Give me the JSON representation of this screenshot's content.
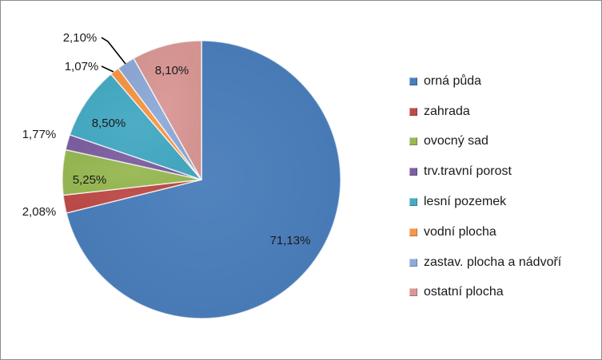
{
  "chart_data": {
    "type": "pie",
    "categories": [
      "orná půda",
      "zahrada",
      "ovocný sad",
      "trv.travní porost",
      "lesní pozemek",
      "vodní plocha",
      "zastav. plocha a nádvoří",
      "ostatní plocha"
    ],
    "values": [
      71.13,
      2.08,
      5.25,
      1.77,
      8.5,
      1.07,
      2.1,
      8.1
    ],
    "labels": [
      "71,13%",
      "2,08%",
      "5,25%",
      "1,77%",
      "8,50%",
      "1,07%",
      "2,10%",
      "8,10%"
    ],
    "colors": [
      "#4a7ebb",
      "#be4b48",
      "#98b954",
      "#7d60a0",
      "#46aac4",
      "#f79646",
      "#8faad8",
      "#d99795"
    ],
    "start_angle_deg": 0,
    "direction": "clockwise",
    "legend_position": "right"
  }
}
